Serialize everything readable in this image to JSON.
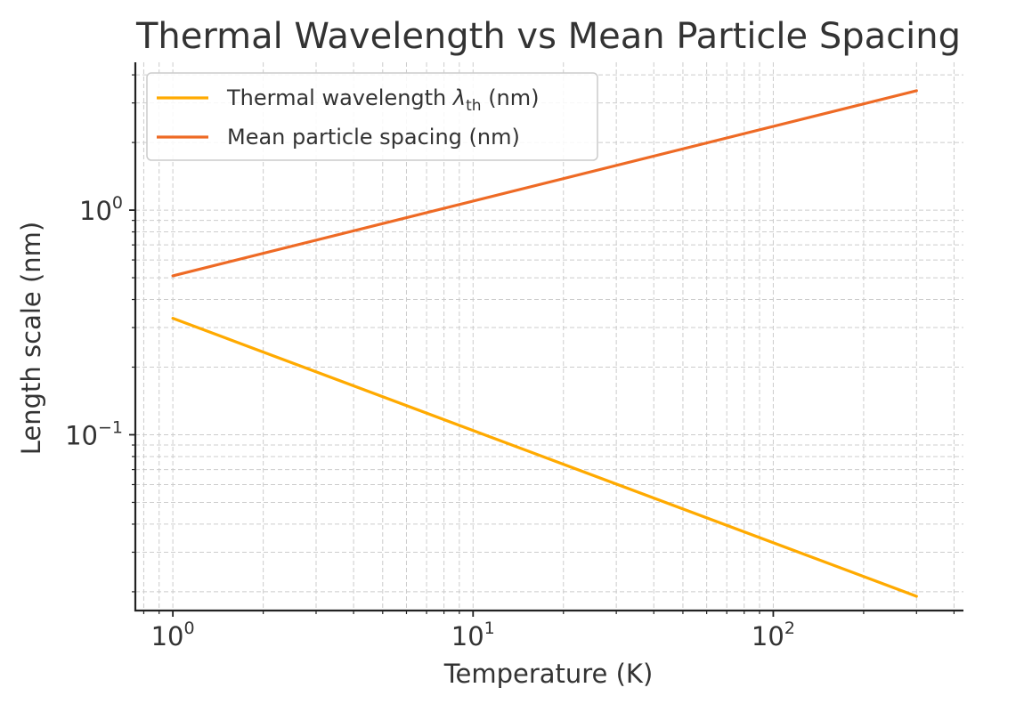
{
  "chart_data": {
    "type": "line",
    "title": "Thermal Wavelength vs Mean Particle Spacing",
    "xlabel": "Temperature (K)",
    "ylabel": "Length scale (nm)",
    "xscale": "log",
    "yscale": "log",
    "xlim": [
      0.75,
      430
    ],
    "ylim": [
      0.0165,
      4.55
    ],
    "grid": true,
    "legend_position": "top-left",
    "x_ticks": [
      {
        "value": 1,
        "base": "10",
        "exp": "0"
      },
      {
        "value": 10,
        "base": "10",
        "exp": "1"
      },
      {
        "value": 100,
        "base": "10",
        "exp": "2"
      }
    ],
    "y_ticks": [
      {
        "value": 1,
        "base": "10",
        "exp": "0"
      },
      {
        "value": 0.1,
        "base": "10",
        "exp": "−1"
      }
    ],
    "series": [
      {
        "name_parts": {
          "pre": "Thermal wavelength ",
          "sym": "λ",
          "sub": "th",
          "post": " (nm)"
        },
        "color": "#FFAA00",
        "x": [
          1,
          300
        ],
        "y": [
          0.33,
          0.0191
        ]
      },
      {
        "name_parts": {
          "pre": "Mean particle spacing (nm)",
          "sym": "",
          "sub": "",
          "post": ""
        },
        "color": "#EE6A25",
        "x": [
          1,
          300
        ],
        "y": [
          0.51,
          3.4
        ]
      }
    ]
  }
}
